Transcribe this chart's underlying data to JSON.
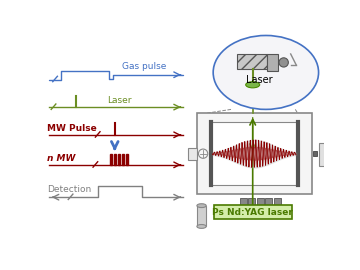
{
  "bg_color": "#ffffff",
  "gas_pulse_color": "#4472c4",
  "laser_color": "#6b8e23",
  "mw_color": "#8b0000",
  "detection_color": "#808080",
  "blue_arrow_color": "#4472c4",
  "label_gas": "Gas pulse",
  "label_laser": "Laser",
  "label_mw": "MW Pulse",
  "label_nmw": "n MW",
  "label_detection": "Detection",
  "label_laser_inset": "Laser",
  "label_ps": "Ps Nd:YAG laser",
  "ps_box_color": "#d4edaa",
  "ps_text_color": "#4a7a00",
  "ellipse_color": "#4472c4",
  "gray_color": "#888888",
  "dark_gray": "#555555"
}
